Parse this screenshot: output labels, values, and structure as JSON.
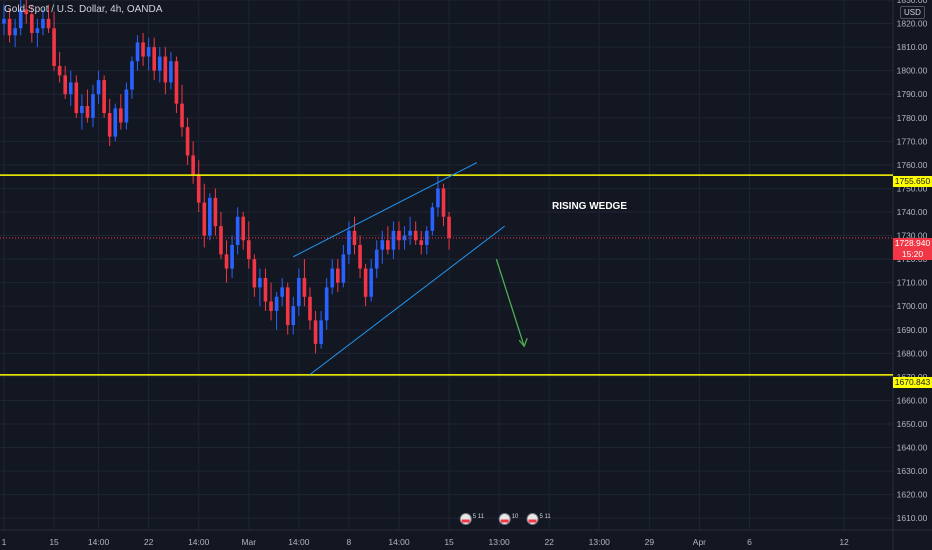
{
  "header": {
    "symbol": "Gold Spot / U.S. Dollar, 4h, OANDA",
    "currency": "USD"
  },
  "annotation": "RISING WEDGE",
  "price_tags": {
    "upper_level": "1755.650",
    "current_price": "1728.940",
    "countdown": "15:20",
    "lower_level": "1670.843"
  },
  "events": [
    {
      "label": "5 11"
    },
    {
      "label": "10"
    },
    {
      "label": "5 11"
    }
  ],
  "colors": {
    "background": "#131722",
    "up_candle": "#2962ff",
    "down_candle": "#f23645",
    "level_line": "#ffff00",
    "wedge_line": "#2196f3",
    "arrow": "#4caf50",
    "grid": "#1f2433",
    "axis_text": "#b2b5be"
  },
  "chart_data": {
    "type": "candlestick",
    "title": "Gold Spot / U.S. Dollar, 4h, OANDA",
    "yaxis": {
      "range": [
        1605,
        1830
      ],
      "ticks": [
        1610,
        1620,
        1630,
        1640,
        1650,
        1660,
        1670,
        1680,
        1690,
        1700,
        1710,
        1720,
        1730,
        1740,
        1750,
        1760,
        1770,
        1780,
        1790,
        1800,
        1810,
        1820,
        1830
      ],
      "side": "right"
    },
    "xaxis": {
      "ticks": [
        {
          "label": "1",
          "index": 0
        },
        {
          "label": "15",
          "index": 9
        },
        {
          "label": "14:00",
          "index": 17
        },
        {
          "label": "22",
          "index": 26
        },
        {
          "label": "14:00",
          "index": 35
        },
        {
          "label": "Mar",
          "index": 44
        },
        {
          "label": "14:00",
          "index": 53
        },
        {
          "label": "8",
          "index": 62
        },
        {
          "label": "14:00",
          "index": 71
        },
        {
          "label": "15",
          "index": 80
        },
        {
          "label": "13:00",
          "index": 89
        },
        {
          "label": "22",
          "index": 98
        },
        {
          "label": "13:00",
          "index": 107
        },
        {
          "label": "29",
          "index": 116
        },
        {
          "label": "Apr",
          "index": 125
        },
        {
          "label": "6",
          "index": 134
        },
        {
          "label": "12",
          "index": 151
        }
      ]
    },
    "index_range": [
      0,
      158
    ],
    "candles": [
      [
        1820,
        1828,
        1815,
        1822
      ],
      [
        1822,
        1826,
        1812,
        1815
      ],
      [
        1815,
        1822,
        1810,
        1818
      ],
      [
        1818,
        1830,
        1815,
        1826
      ],
      [
        1826,
        1830,
        1820,
        1824
      ],
      [
        1824,
        1828,
        1812,
        1816
      ],
      [
        1816,
        1822,
        1810,
        1818
      ],
      [
        1818,
        1826,
        1815,
        1822
      ],
      [
        1822,
        1828,
        1816,
        1818
      ],
      [
        1818,
        1825,
        1800,
        1802
      ],
      [
        1802,
        1808,
        1795,
        1798
      ],
      [
        1798,
        1802,
        1788,
        1790
      ],
      [
        1790,
        1800,
        1785,
        1795
      ],
      [
        1795,
        1798,
        1780,
        1782
      ],
      [
        1782,
        1790,
        1775,
        1785
      ],
      [
        1785,
        1792,
        1778,
        1780
      ],
      [
        1780,
        1794,
        1776,
        1790
      ],
      [
        1790,
        1800,
        1786,
        1796
      ],
      [
        1796,
        1798,
        1780,
        1782
      ],
      [
        1782,
        1788,
        1768,
        1772
      ],
      [
        1772,
        1786,
        1770,
        1784
      ],
      [
        1784,
        1790,
        1775,
        1778
      ],
      [
        1778,
        1795,
        1775,
        1792
      ],
      [
        1792,
        1806,
        1788,
        1804
      ],
      [
        1804,
        1815,
        1800,
        1812
      ],
      [
        1812,
        1816,
        1802,
        1806
      ],
      [
        1806,
        1814,
        1800,
        1810
      ],
      [
        1810,
        1814,
        1796,
        1800
      ],
      [
        1800,
        1810,
        1795,
        1806
      ],
      [
        1806,
        1810,
        1790,
        1795
      ],
      [
        1795,
        1808,
        1792,
        1804
      ],
      [
        1804,
        1806,
        1782,
        1786
      ],
      [
        1786,
        1794,
        1772,
        1776
      ],
      [
        1776,
        1780,
        1760,
        1764
      ],
      [
        1764,
        1770,
        1752,
        1756
      ],
      [
        1756,
        1762,
        1740,
        1744
      ],
      [
        1744,
        1752,
        1725,
        1730
      ],
      [
        1730,
        1748,
        1728,
        1746
      ],
      [
        1746,
        1750,
        1730,
        1734
      ],
      [
        1734,
        1740,
        1720,
        1722
      ],
      [
        1722,
        1728,
        1710,
        1716
      ],
      [
        1716,
        1730,
        1712,
        1726
      ],
      [
        1726,
        1742,
        1722,
        1738
      ],
      [
        1738,
        1740,
        1724,
        1728
      ],
      [
        1728,
        1736,
        1716,
        1720
      ],
      [
        1720,
        1722,
        1704,
        1708
      ],
      [
        1708,
        1716,
        1700,
        1712
      ],
      [
        1712,
        1716,
        1698,
        1702
      ],
      [
        1702,
        1710,
        1694,
        1698
      ],
      [
        1698,
        1706,
        1690,
        1704
      ],
      [
        1704,
        1712,
        1700,
        1708
      ],
      [
        1708,
        1710,
        1688,
        1692
      ],
      [
        1692,
        1704,
        1688,
        1700
      ],
      [
        1700,
        1716,
        1696,
        1712
      ],
      [
        1712,
        1720,
        1700,
        1704
      ],
      [
        1704,
        1708,
        1690,
        1694
      ],
      [
        1694,
        1698,
        1680,
        1684
      ],
      [
        1684,
        1698,
        1682,
        1694
      ],
      [
        1694,
        1712,
        1690,
        1708
      ],
      [
        1708,
        1720,
        1705,
        1716
      ],
      [
        1716,
        1720,
        1706,
        1710
      ],
      [
        1710,
        1726,
        1708,
        1722
      ],
      [
        1722,
        1736,
        1718,
        1732
      ],
      [
        1732,
        1738,
        1722,
        1726
      ],
      [
        1726,
        1730,
        1712,
        1716
      ],
      [
        1716,
        1718,
        1700,
        1704
      ],
      [
        1704,
        1720,
        1702,
        1716
      ],
      [
        1716,
        1728,
        1712,
        1724
      ],
      [
        1724,
        1732,
        1718,
        1728
      ],
      [
        1728,
        1734,
        1722,
        1724
      ],
      [
        1724,
        1736,
        1720,
        1732
      ],
      [
        1732,
        1736,
        1724,
        1728
      ],
      [
        1728,
        1734,
        1724,
        1730
      ],
      [
        1730,
        1738,
        1726,
        1732
      ],
      [
        1732,
        1736,
        1726,
        1728
      ],
      [
        1728,
        1732,
        1722,
        1726
      ],
      [
        1726,
        1734,
        1722,
        1732
      ],
      [
        1732,
        1744,
        1730,
        1742
      ],
      [
        1742,
        1756,
        1738,
        1750
      ],
      [
        1750,
        1752,
        1734,
        1738
      ],
      [
        1738,
        1740,
        1724,
        1729
      ]
    ]
  }
}
